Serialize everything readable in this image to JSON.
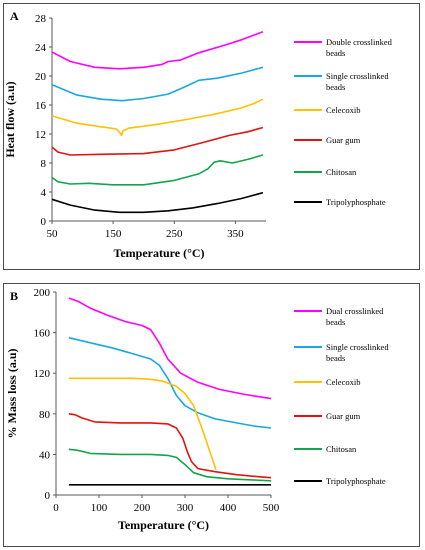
{
  "chart_data": [
    {
      "type": "line",
      "panel_label": "A",
      "xlabel": "Temperature (°C)",
      "ylabel": "Heat flow (a.u)",
      "xlim": [
        50,
        400
      ],
      "ylim": [
        0,
        28
      ],
      "xticks": [
        50,
        150,
        250,
        350
      ],
      "yticks": [
        0,
        4,
        8,
        12,
        16,
        20,
        24,
        28
      ],
      "grid": false,
      "legend_position": "right",
      "series": [
        {
          "name": "Double crosslinked beads",
          "color": "#ff00ff",
          "points": [
            [
              50,
              23.3
            ],
            [
              80,
              22
            ],
            [
              120,
              21.2
            ],
            [
              160,
              21
            ],
            [
              200,
              21.2
            ],
            [
              230,
              21.6
            ],
            [
              240,
              22
            ],
            [
              260,
              22.2
            ],
            [
              290,
              23.2
            ],
            [
              330,
              24.2
            ],
            [
              360,
              25
            ],
            [
              395,
              26.1
            ]
          ]
        },
        {
          "name": "Single crosslinked beads",
          "color": "#1aa7e0",
          "points": [
            [
              50,
              18.8
            ],
            [
              90,
              17.4
            ],
            [
              130,
              16.8
            ],
            [
              165,
              16.6
            ],
            [
              200,
              16.9
            ],
            [
              240,
              17.5
            ],
            [
              270,
              18.6
            ],
            [
              290,
              19.4
            ],
            [
              320,
              19.7
            ],
            [
              360,
              20.4
            ],
            [
              395,
              21.2
            ]
          ]
        },
        {
          "name": "Celecoxib",
          "color": "#ffc000",
          "points": [
            [
              50,
              14.5
            ],
            [
              90,
              13.5
            ],
            [
              130,
              13
            ],
            [
              155,
              12.7
            ],
            [
              161,
              12.2
            ],
            [
              164,
              11.8
            ],
            [
              166,
              12.4
            ],
            [
              175,
              12.8
            ],
            [
              220,
              13.3
            ],
            [
              270,
              14
            ],
            [
              320,
              14.8
            ],
            [
              360,
              15.6
            ],
            [
              380,
              16.2
            ],
            [
              395,
              16.8
            ]
          ]
        },
        {
          "name": "Guar gum",
          "color": "#e2130f",
          "points": [
            [
              50,
              10.2
            ],
            [
              60,
              9.5
            ],
            [
              80,
              9.1
            ],
            [
              130,
              9.2
            ],
            [
              200,
              9.3
            ],
            [
              250,
              9.8
            ],
            [
              300,
              10.9
            ],
            [
              340,
              11.8
            ],
            [
              370,
              12.3
            ],
            [
              395,
              12.9
            ]
          ]
        },
        {
          "name": "Chitosan",
          "color": "#12a54a",
          "points": [
            [
              50,
              6
            ],
            [
              60,
              5.4
            ],
            [
              80,
              5.1
            ],
            [
              110,
              5.2
            ],
            [
              150,
              5
            ],
            [
              200,
              5
            ],
            [
              250,
              5.6
            ],
            [
              290,
              6.5
            ],
            [
              305,
              7.2
            ],
            [
              315,
              8.1
            ],
            [
              325,
              8.3
            ],
            [
              345,
              8
            ],
            [
              370,
              8.5
            ],
            [
              395,
              9.1
            ]
          ]
        },
        {
          "name": "Tripolyphosphate",
          "color": "#000000",
          "points": [
            [
              50,
              3
            ],
            [
              80,
              2.2
            ],
            [
              120,
              1.5
            ],
            [
              160,
              1.2
            ],
            [
              200,
              1.2
            ],
            [
              240,
              1.4
            ],
            [
              280,
              1.8
            ],
            [
              320,
              2.4
            ],
            [
              360,
              3.1
            ],
            [
              395,
              3.9
            ]
          ]
        }
      ]
    },
    {
      "type": "line",
      "panel_label": "B",
      "xlabel": "Temperature (°C)",
      "ylabel": "% Mass loss (a.u)",
      "xlim": [
        0,
        500
      ],
      "ylim": [
        0,
        200
      ],
      "xticks": [
        0,
        100,
        200,
        300,
        400,
        500
      ],
      "yticks": [
        0,
        40,
        80,
        120,
        160,
        200
      ],
      "grid": false,
      "legend_position": "right",
      "series": [
        {
          "name": "Dual crosslinked beads",
          "color": "#ff00ff",
          "points": [
            [
              30,
              194
            ],
            [
              50,
              191
            ],
            [
              80,
              184
            ],
            [
              120,
              177
            ],
            [
              160,
              171
            ],
            [
              200,
              167
            ],
            [
              220,
              163
            ],
            [
              240,
              150
            ],
            [
              260,
              134
            ],
            [
              290,
              120
            ],
            [
              330,
              111
            ],
            [
              380,
              104
            ],
            [
              440,
              99
            ],
            [
              500,
              95
            ]
          ]
        },
        {
          "name": "Single crosslinked beads",
          "color": "#1aa7e0",
          "points": [
            [
              30,
              155
            ],
            [
              80,
              150
            ],
            [
              130,
              145
            ],
            [
              180,
              139
            ],
            [
              220,
              134
            ],
            [
              240,
              128
            ],
            [
              260,
              115
            ],
            [
              280,
              98
            ],
            [
              300,
              88
            ],
            [
              330,
              81
            ],
            [
              370,
              75
            ],
            [
              420,
              71
            ],
            [
              460,
              68
            ],
            [
              500,
              66
            ]
          ]
        },
        {
          "name": "Celecoxib",
          "color": "#ffc000",
          "points": [
            [
              30,
              115
            ],
            [
              100,
              115
            ],
            [
              180,
              115
            ],
            [
              220,
              114
            ],
            [
              250,
              112
            ],
            [
              280,
              107
            ],
            [
              300,
              100
            ],
            [
              320,
              88
            ],
            [
              340,
              65
            ],
            [
              360,
              40
            ],
            [
              372,
              25
            ]
          ]
        },
        {
          "name": "Guar gum",
          "color": "#e2130f",
          "points": [
            [
              30,
              80
            ],
            [
              45,
              79
            ],
            [
              60,
              76
            ],
            [
              90,
              72
            ],
            [
              150,
              71
            ],
            [
              220,
              71
            ],
            [
              260,
              70
            ],
            [
              280,
              66
            ],
            [
              295,
              56
            ],
            [
              305,
              43
            ],
            [
              315,
              33
            ],
            [
              330,
              26
            ],
            [
              370,
              23
            ],
            [
              420,
              20
            ],
            [
              470,
              18
            ],
            [
              500,
              17
            ]
          ]
        },
        {
          "name": "Chitosan",
          "color": "#12a54a",
          "points": [
            [
              30,
              45
            ],
            [
              50,
              44
            ],
            [
              80,
              41
            ],
            [
              150,
              40
            ],
            [
              220,
              40
            ],
            [
              260,
              39
            ],
            [
              280,
              37
            ],
            [
              300,
              30
            ],
            [
              320,
              22
            ],
            [
              350,
              18
            ],
            [
              400,
              16
            ],
            [
              450,
              15
            ],
            [
              500,
              14
            ]
          ]
        },
        {
          "name": "Tripolyphosphate",
          "color": "#000000",
          "points": [
            [
              30,
              10
            ],
            [
              500,
              10
            ]
          ]
        }
      ]
    }
  ]
}
